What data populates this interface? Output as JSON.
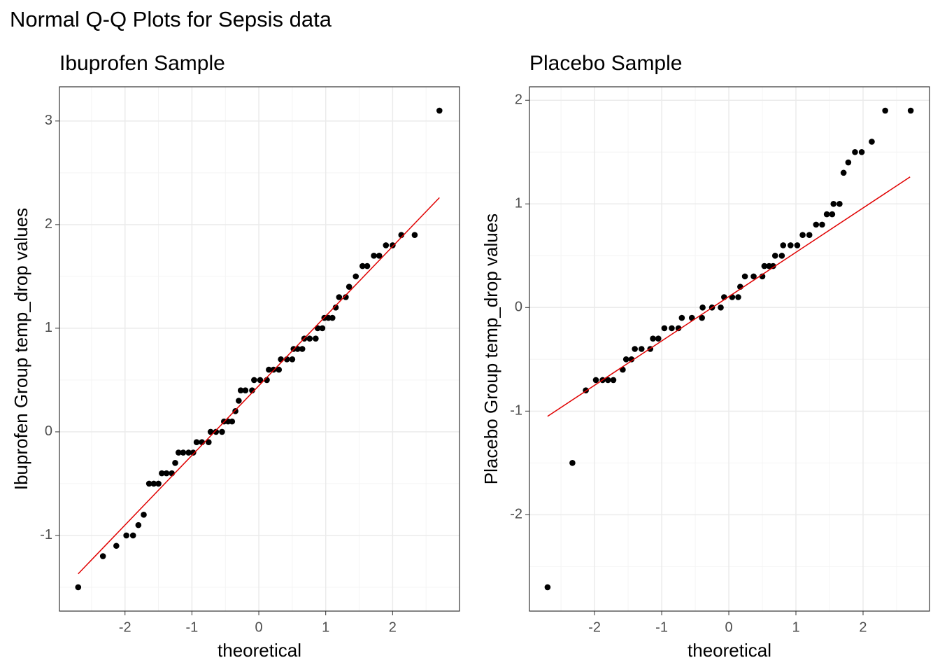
{
  "title": "Normal Q-Q Plots for Sepsis data",
  "chart_data": [
    {
      "type": "scatter",
      "title": "Ibuprofen Sample",
      "x_label": "theoretical",
      "y_label": "Ibuprofen Group temp_drop values",
      "xlim": [
        -2.98,
        3.0
      ],
      "ylim": [
        -1.73,
        3.33
      ],
      "xticks": [
        -2,
        -1,
        0,
        1,
        2
      ],
      "yticks": [
        -1,
        0,
        1,
        2,
        3
      ],
      "grid": true,
      "minor_grid": true,
      "color": "#000000",
      "x": [
        -2.7,
        -2.33,
        -2.13,
        -1.98,
        -1.88,
        -1.8,
        -1.72,
        -1.64,
        -1.57,
        -1.5,
        -1.45,
        -1.38,
        -1.3,
        -1.25,
        -1.2,
        -1.13,
        -1.05,
        -0.98,
        -0.93,
        -0.85,
        -0.75,
        -0.72,
        -0.64,
        -0.55,
        -0.52,
        -0.46,
        -0.4,
        -0.35,
        -0.3,
        -0.27,
        -0.2,
        -0.1,
        -0.07,
        0.02,
        0.12,
        0.15,
        0.22,
        0.3,
        0.33,
        0.42,
        0.5,
        0.52,
        0.58,
        0.65,
        0.68,
        0.76,
        0.85,
        0.88,
        0.95,
        0.98,
        1.04,
        1.1,
        1.15,
        1.2,
        1.3,
        1.35,
        1.45,
        1.55,
        1.62,
        1.72,
        1.8,
        1.9,
        2.0,
        2.13,
        2.33,
        2.7
      ],
      "values": [
        -1.5,
        -1.2,
        -1.1,
        -1.0,
        -1.0,
        -0.9,
        -0.8,
        -0.5,
        -0.5,
        -0.5,
        -0.4,
        -0.4,
        -0.4,
        -0.3,
        -0.2,
        -0.2,
        -0.2,
        -0.2,
        -0.1,
        -0.1,
        -0.1,
        0,
        0,
        0,
        0.1,
        0.1,
        0.1,
        0.2,
        0.3,
        0.4,
        0.4,
        0.4,
        0.5,
        0.5,
        0.5,
        0.6,
        0.6,
        0.6,
        0.7,
        0.7,
        0.7,
        0.8,
        0.8,
        0.8,
        0.9,
        0.9,
        0.9,
        1.0,
        1.0,
        1.1,
        1.1,
        1.1,
        1.2,
        1.3,
        1.3,
        1.4,
        1.5,
        1.6,
        1.6,
        1.7,
        1.7,
        1.8,
        1.8,
        1.9,
        1.9,
        3.1
      ],
      "line": {
        "x": [
          -2.7,
          2.7
        ],
        "values": [
          -1.37,
          2.26
        ],
        "color": "#e00000"
      }
    },
    {
      "type": "scatter",
      "title": "Placebo Sample",
      "x_label": "theoretical",
      "y_label": "Placebo Group temp_drop values",
      "xlim": [
        -2.97,
        2.99
      ],
      "ylim": [
        -2.93,
        2.13
      ],
      "xticks": [
        -2,
        -1,
        0,
        1,
        2
      ],
      "yticks": [
        -2,
        -1,
        0,
        1,
        2
      ],
      "grid": true,
      "minor_grid": true,
      "color": "#000000",
      "x": [
        -2.7,
        -2.33,
        -2.13,
        -1.98,
        -1.88,
        -1.8,
        -1.72,
        -1.58,
        -1.53,
        -1.45,
        -1.4,
        -1.3,
        -1.17,
        -1.13,
        -1.05,
        -0.96,
        -0.85,
        -0.75,
        -0.7,
        -0.55,
        -0.4,
        -0.39,
        -0.25,
        -0.12,
        -0.07,
        0.05,
        0.14,
        0.17,
        0.24,
        0.37,
        0.5,
        0.53,
        0.6,
        0.66,
        0.69,
        0.79,
        0.81,
        0.92,
        1.02,
        1.1,
        1.2,
        1.3,
        1.39,
        1.46,
        1.54,
        1.56,
        1.65,
        1.71,
        1.78,
        1.88,
        1.98,
        2.13,
        2.33,
        2.71
      ],
      "values": [
        -2.7,
        -1.5,
        -0.8,
        -0.7,
        -0.7,
        -0.7,
        -0.7,
        -0.6,
        -0.5,
        -0.5,
        -0.4,
        -0.4,
        -0.4,
        -0.3,
        -0.3,
        -0.2,
        -0.2,
        -0.2,
        -0.1,
        -0.1,
        -0.1,
        0,
        0,
        0,
        0.1,
        0.1,
        0.1,
        0.2,
        0.3,
        0.3,
        0.3,
        0.4,
        0.4,
        0.4,
        0.5,
        0.5,
        0.6,
        0.6,
        0.6,
        0.7,
        0.7,
        0.8,
        0.8,
        0.9,
        0.9,
        1.0,
        1.0,
        1.3,
        1.4,
        1.5,
        1.5,
        1.6,
        1.9,
        1.9
      ],
      "line": {
        "x": [
          -2.7,
          2.7
        ],
        "values": [
          -1.05,
          1.26
        ],
        "color": "#e00000"
      }
    }
  ]
}
